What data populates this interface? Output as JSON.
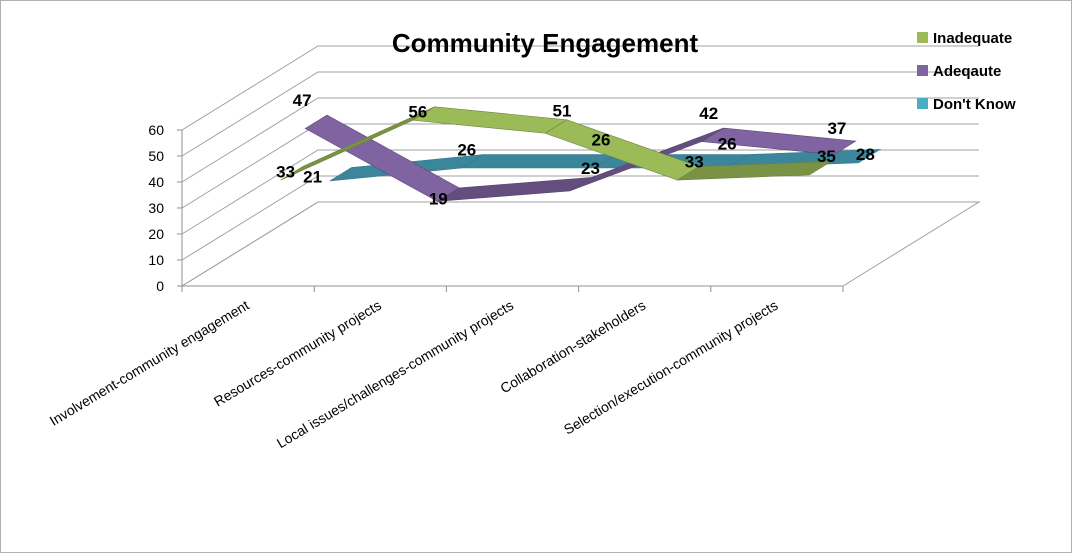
{
  "chart_data": {
    "type": "line",
    "title": "Community Engagement",
    "categories": [
      "Involvement-community engagement",
      "Resources-community projects",
      "Local issues/challenges-community projects",
      "Collaboration-stakeholders",
      "Selection/execution-community projects"
    ],
    "series": [
      {
        "name": "Inadequate",
        "color": "#9BBB59",
        "values": [
          33,
          56,
          51,
          33,
          35
        ]
      },
      {
        "name": "Adeqaute",
        "color": "#8064A2",
        "values": [
          47,
          19,
          23,
          42,
          37
        ]
      },
      {
        "name": "Don't Know",
        "color": "#4BACC6",
        "values": [
          21,
          26,
          26,
          26,
          28
        ]
      }
    ],
    "y_ticks": [
      "0",
      "10",
      "20",
      "30",
      "40",
      "50",
      "60"
    ],
    "ylim": [
      0,
      60
    ],
    "grid": true,
    "legend_position": "top-right",
    "style": "3d-line"
  }
}
